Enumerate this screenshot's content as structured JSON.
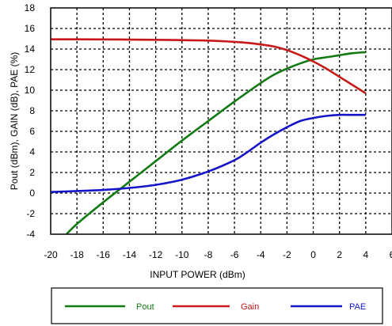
{
  "chart_data": {
    "type": "line",
    "title": "",
    "xlabel": "INPUT POWER (dBm)",
    "ylabel": "Pout (dBm), GAIN (dB), PAE (%)",
    "xlim": [
      -20,
      6
    ],
    "ylim": [
      -4,
      18
    ],
    "x_ticks": [
      -20,
      -18,
      -16,
      -14,
      -12,
      -10,
      -8,
      -6,
      -4,
      -2,
      0,
      2,
      4,
      6
    ],
    "y_ticks": [
      -4,
      -2,
      0,
      2,
      4,
      6,
      8,
      10,
      12,
      14,
      16,
      18
    ],
    "grid": true,
    "legend_position": "bottom",
    "series": [
      {
        "name": "Pout",
        "color": "#127a12",
        "x": [
          -18.8,
          -18,
          -16,
          -14,
          -12,
          -10,
          -8,
          -6,
          -4,
          -3,
          -2,
          -1,
          0,
          1,
          2,
          3,
          4
        ],
        "y": [
          -4,
          -3,
          -0.9,
          1.1,
          3.1,
          5.1,
          7,
          8.9,
          10.7,
          11.5,
          12.1,
          12.6,
          13,
          13.2,
          13.4,
          13.6,
          13.7
        ]
      },
      {
        "name": "Gain",
        "color": "#c81818",
        "x": [
          -20,
          -18,
          -16,
          -14,
          -12,
          -10,
          -8,
          -6,
          -5,
          -4,
          -3,
          -2,
          -1,
          0,
          1,
          2,
          3,
          4
        ],
        "y": [
          14.95,
          14.95,
          14.94,
          14.92,
          14.9,
          14.87,
          14.82,
          14.7,
          14.6,
          14.45,
          14.25,
          13.9,
          13.4,
          12.8,
          12.1,
          11.3,
          10.5,
          9.7
        ]
      },
      {
        "name": "PAE",
        "color": "#1414c8",
        "x": [
          -20,
          -18,
          -16,
          -14,
          -12,
          -10,
          -8,
          -6,
          -5,
          -4,
          -3,
          -2,
          -1,
          0,
          1,
          2,
          3,
          4
        ],
        "y": [
          0.1,
          0.2,
          0.3,
          0.5,
          0.8,
          1.3,
          2.1,
          3.2,
          4,
          4.9,
          5.7,
          6.4,
          7,
          7.3,
          7.5,
          7.6,
          7.6,
          7.6
        ]
      }
    ]
  }
}
